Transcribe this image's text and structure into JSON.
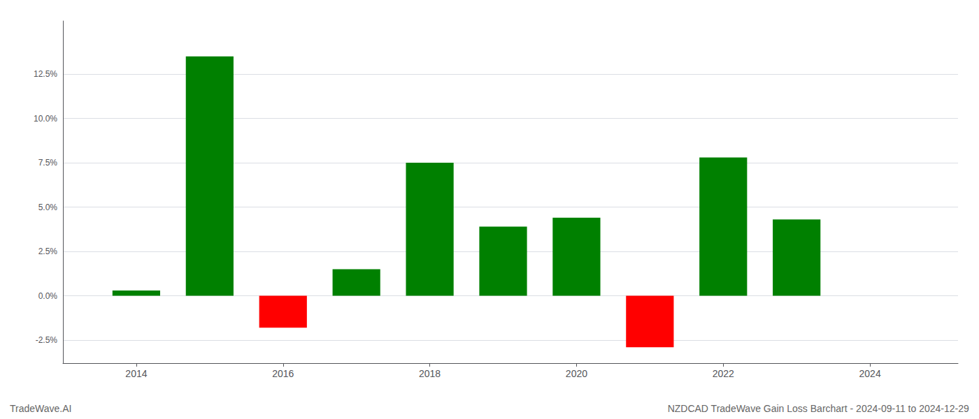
{
  "chart_data": {
    "type": "bar",
    "x": [
      2014,
      2015,
      2016,
      2017,
      2018,
      2019,
      2020,
      2021,
      2022,
      2023
    ],
    "values": [
      0.003,
      0.135,
      -0.018,
      0.015,
      0.075,
      0.039,
      0.044,
      -0.029,
      0.078,
      0.043
    ],
    "colors": [
      "#008000",
      "#008000",
      "#ff0000",
      "#008000",
      "#008000",
      "#008000",
      "#008000",
      "#ff0000",
      "#008000",
      "#008000"
    ],
    "xlim": [
      2013.0,
      2025.2
    ],
    "ylim": [
      -0.038,
      0.155
    ],
    "xticks": [
      2014,
      2016,
      2018,
      2020,
      2022,
      2024
    ],
    "yticks": [
      {
        "value": -0.025,
        "label": "-2.5%"
      },
      {
        "value": 0.0,
        "label": "0.0%"
      },
      {
        "value": 0.025,
        "label": "2.5%"
      },
      {
        "value": 0.05,
        "label": "5.0%"
      },
      {
        "value": 0.075,
        "label": "7.5%"
      },
      {
        "value": 0.1,
        "label": "10.0%"
      },
      {
        "value": 0.125,
        "label": "12.5%"
      }
    ],
    "grid": true,
    "annotations": [
      "TradeWave.AI",
      "NZDCAD TradeWave Gain Loss Barchart - 2024-09-11 to 2024-12-29"
    ]
  }
}
